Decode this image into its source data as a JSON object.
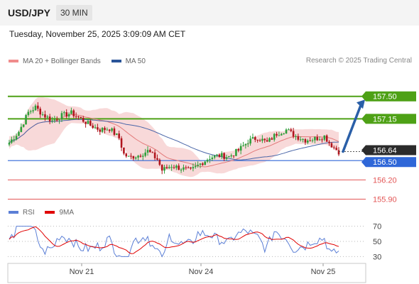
{
  "header": {
    "symbol": "USD/JPY",
    "interval": "30 MIN"
  },
  "datetime": "Tuesday, November 25, 2025 3:09:09 AM CET",
  "legend_main": [
    {
      "label": "MA 20 + Bollinger Bands",
      "color": "#f08c8c"
    },
    {
      "label": "MA 50",
      "color": "#2a5599"
    }
  ],
  "legend_rsi": [
    {
      "label": "RSI",
      "color": "#5b7fd6"
    },
    {
      "label": "9MA",
      "color": "#e00000"
    }
  ],
  "credit": "Research © 2025 Trading Central",
  "colors": {
    "up": "#2e9f3a",
    "down": "#b0151d",
    "support": "#2f67d8",
    "lower": "#e35656",
    "target": "#4ea116",
    "arrow": "#2a5fa8"
  },
  "chart_data": {
    "type": "candlestick",
    "title": "",
    "xlabel": "",
    "ylabel": "",
    "x_ticks": [
      "Nov 21",
      "Nov 24",
      "Nov 25"
    ],
    "ylim": [
      155.85,
      157.95
    ],
    "levels": [
      {
        "value": 157.5,
        "label": "157.50",
        "style": "target"
      },
      {
        "value": 157.15,
        "label": "157.15",
        "style": "target"
      },
      {
        "value": 156.64,
        "label": "156.64",
        "style": "current"
      },
      {
        "value": 156.5,
        "label": "156.50",
        "style": "support"
      },
      {
        "value": 156.2,
        "label": "156.20",
        "style": "lower"
      },
      {
        "value": 155.9,
        "label": "155.90",
        "style": "lower"
      }
    ],
    "current_price": 156.64,
    "arrow": {
      "from_price": 156.64,
      "to_price": 157.45
    },
    "rsi": {
      "levels": [
        70,
        50,
        30
      ],
      "ylim": [
        22,
        78
      ]
    }
  }
}
